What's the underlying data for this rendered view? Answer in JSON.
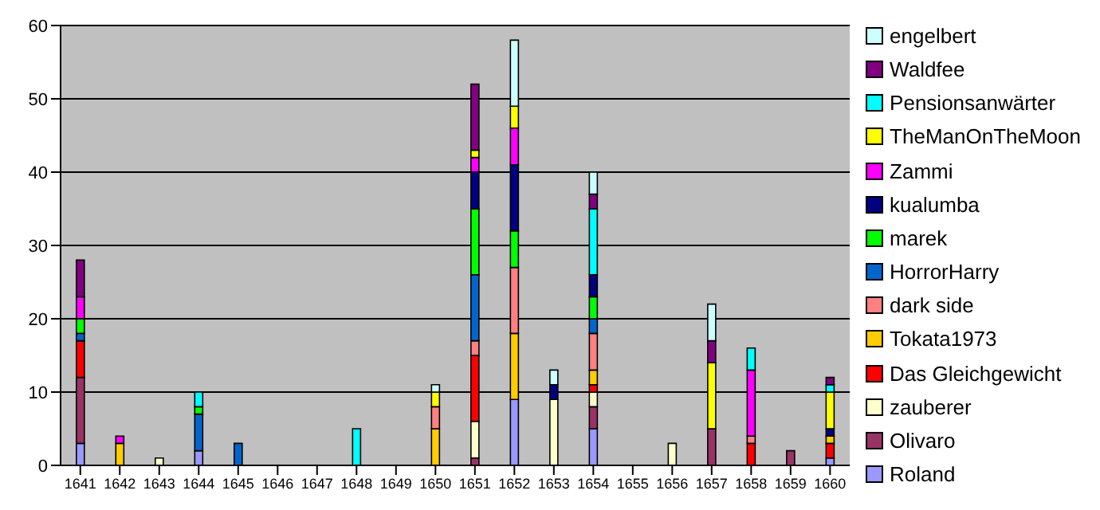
{
  "chart_data": {
    "type": "bar",
    "stacked": true,
    "categories": [
      "1641",
      "1642",
      "1643",
      "1644",
      "1645",
      "1646",
      "1647",
      "1648",
      "1649",
      "1650",
      "1651",
      "1652",
      "1653",
      "1654",
      "1655",
      "1656",
      "1657",
      "1658",
      "1659",
      "1660"
    ],
    "series": [
      {
        "name": "Roland",
        "color": "#9999ff",
        "values": [
          3,
          null,
          null,
          2,
          null,
          null,
          null,
          null,
          null,
          null,
          null,
          9,
          null,
          5,
          null,
          null,
          null,
          null,
          null,
          1
        ]
      },
      {
        "name": "Olivaro",
        "color": "#993366",
        "values": [
          9,
          null,
          null,
          null,
          null,
          null,
          null,
          null,
          null,
          null,
          1,
          null,
          null,
          3,
          null,
          null,
          5,
          null,
          2,
          null
        ]
      },
      {
        "name": "zauberer",
        "color": "#ffffcc",
        "values": [
          null,
          null,
          1,
          null,
          null,
          null,
          null,
          null,
          null,
          null,
          5,
          null,
          9,
          2,
          null,
          3,
          null,
          null,
          null,
          null
        ]
      },
      {
        "name": "Das Gleichgewicht",
        "color": "#ff0000",
        "values": [
          5,
          null,
          null,
          null,
          null,
          null,
          null,
          null,
          null,
          null,
          9,
          null,
          null,
          1,
          null,
          null,
          null,
          3,
          null,
          2
        ]
      },
      {
        "name": "Tokata1973",
        "color": "#ffcc00",
        "values": [
          null,
          3,
          null,
          null,
          null,
          null,
          null,
          null,
          null,
          5,
          null,
          9,
          null,
          2,
          null,
          null,
          null,
          null,
          null,
          1
        ]
      },
      {
        "name": "dark side",
        "color": "#ff8080",
        "values": [
          null,
          null,
          null,
          null,
          null,
          null,
          null,
          null,
          null,
          3,
          2,
          9,
          null,
          5,
          null,
          null,
          null,
          1,
          null,
          null
        ]
      },
      {
        "name": "HorrorHarry",
        "color": "#0066cc",
        "values": [
          1,
          null,
          null,
          5,
          3,
          null,
          null,
          null,
          null,
          null,
          9,
          null,
          null,
          2,
          null,
          null,
          null,
          null,
          null,
          null
        ]
      },
      {
        "name": "marek",
        "color": "#00ff00",
        "values": [
          2,
          null,
          null,
          1,
          null,
          null,
          null,
          null,
          null,
          null,
          9,
          5,
          null,
          3,
          null,
          null,
          null,
          null,
          null,
          null
        ]
      },
      {
        "name": "kualumba",
        "color": "#000080",
        "values": [
          null,
          null,
          null,
          null,
          null,
          null,
          null,
          null,
          null,
          null,
          5,
          9,
          2,
          3,
          null,
          null,
          null,
          null,
          null,
          1
        ]
      },
      {
        "name": "Zammi",
        "color": "#ff00ff",
        "values": [
          3,
          1,
          null,
          null,
          null,
          null,
          null,
          null,
          null,
          null,
          2,
          5,
          null,
          null,
          null,
          null,
          null,
          9,
          null,
          null
        ]
      },
      {
        "name": "TheManOnTheMoon",
        "color": "#ffff00",
        "values": [
          null,
          null,
          null,
          null,
          null,
          null,
          null,
          null,
          null,
          2,
          1,
          3,
          null,
          null,
          null,
          null,
          9,
          null,
          null,
          5
        ]
      },
      {
        "name": "Pensionsanwärter",
        "color": "#00ffff",
        "values": [
          null,
          null,
          null,
          2,
          null,
          null,
          null,
          5,
          null,
          null,
          null,
          null,
          null,
          9,
          null,
          null,
          null,
          3,
          null,
          1
        ]
      },
      {
        "name": "Waldfee",
        "color": "#800080",
        "values": [
          5,
          null,
          null,
          null,
          null,
          null,
          null,
          null,
          null,
          null,
          9,
          null,
          null,
          2,
          null,
          null,
          3,
          null,
          null,
          1
        ]
      },
      {
        "name": "engelbert",
        "color": "#ccffff",
        "values": [
          null,
          null,
          null,
          null,
          null,
          null,
          null,
          null,
          null,
          1,
          null,
          9,
          2,
          3,
          null,
          null,
          5,
          null,
          null,
          null
        ]
      }
    ],
    "ylim": [
      0,
      60
    ],
    "yticks": [
      0,
      10,
      20,
      30,
      40,
      50,
      60
    ],
    "grid": "y",
    "legend": "right"
  }
}
